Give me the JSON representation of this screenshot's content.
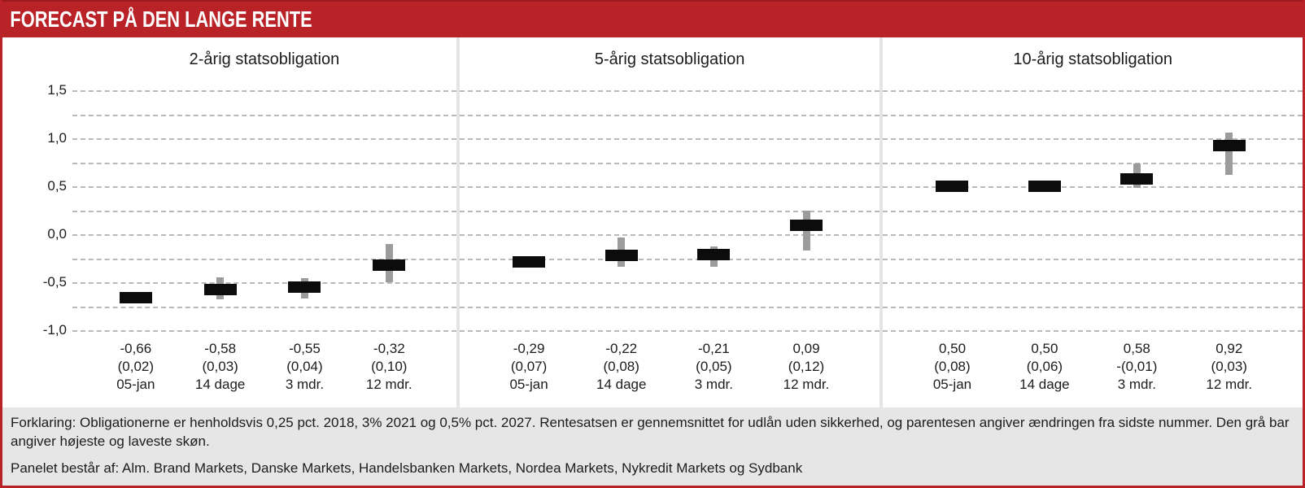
{
  "header": {
    "title": "FORECAST PÅ DEN LANGE RENTE"
  },
  "colors": {
    "accent": "#b92227",
    "accent_dark": "#9a1a1f",
    "bar": "#0c0c0c",
    "whisker": "#9c9c9c",
    "footer_bg": "#e6e6e6",
    "gridline": "#b9b9b9"
  },
  "chart_data": {
    "type": "bar",
    "title": "FORECAST PÅ DEN LANGE RENTE",
    "ylim": [
      -1.0,
      1.5
    ],
    "grid_step": 0.25,
    "grid": "dashed",
    "legend_position": "none",
    "yticks": [
      {
        "label": "1,5",
        "value": 1.5
      },
      {
        "label": "1,0",
        "value": 1.0
      },
      {
        "label": "0,5",
        "value": 0.5
      },
      {
        "label": "0,0",
        "value": 0.0
      },
      {
        "label": "-0,5",
        "value": -0.5
      },
      {
        "label": "-1,0",
        "value": -1.0
      }
    ],
    "x_positions_pct": [
      16.5,
      38.5,
      60.5,
      82.5
    ],
    "panels": [
      {
        "title": "2-årig statsobligation",
        "categories": [
          "05-jan",
          "14 dage",
          "3 mdr.",
          "12 mdr."
        ],
        "points": [
          {
            "value": -0.66,
            "value_label": "-0,66",
            "change_label": "(0,02)",
            "low": -0.66,
            "high": -0.66
          },
          {
            "value": -0.58,
            "value_label": "-0,58",
            "change_label": "(0,03)",
            "low": -0.68,
            "high": -0.45
          },
          {
            "value": -0.55,
            "value_label": "-0,55",
            "change_label": "(0,04)",
            "low": -0.67,
            "high": -0.46
          },
          {
            "value": -0.32,
            "value_label": "-0,32",
            "change_label": "(0,10)",
            "low": -0.5,
            "high": -0.1
          }
        ]
      },
      {
        "title": "5-årig statsobligation",
        "categories": [
          "05-jan",
          "14 dage",
          "3 mdr.",
          "12 mdr."
        ],
        "points": [
          {
            "value": -0.29,
            "value_label": "-0,29",
            "change_label": "(0,07)",
            "low": -0.29,
            "high": -0.29
          },
          {
            "value": -0.22,
            "value_label": "-0,22",
            "change_label": "(0,08)",
            "low": -0.34,
            "high": -0.03
          },
          {
            "value": -0.21,
            "value_label": "-0,21",
            "change_label": "(0,05)",
            "low": -0.34,
            "high": -0.13
          },
          {
            "value": 0.09,
            "value_label": "0,09",
            "change_label": "(0,12)",
            "low": -0.17,
            "high": 0.25
          }
        ]
      },
      {
        "title": "10-årig statsobligation",
        "categories": [
          "05-jan",
          "14 dage",
          "3 mdr.",
          "12 mdr."
        ],
        "points": [
          {
            "value": 0.5,
            "value_label": "0,50",
            "change_label": "(0,08)",
            "low": 0.5,
            "high": 0.5
          },
          {
            "value": 0.5,
            "value_label": "0,50",
            "change_label": "(0,06)",
            "low": 0.5,
            "high": 0.5
          },
          {
            "value": 0.58,
            "value_label": "0,58",
            "change_label": "-(0,01)",
            "low": 0.48,
            "high": 0.74
          },
          {
            "value": 0.92,
            "value_label": "0,92",
            "change_label": "(0,03)",
            "low": 0.62,
            "high": 1.06
          }
        ]
      }
    ]
  },
  "footer": {
    "explanation": "Forklaring: Obligationerne er henholdsvis 0,25 pct. 2018, 3% 2021 og 0,5% pct. 2027. Rentesatsen er gennemsnittet for udlån uden sikkerhed, og parentesen angiver ændringen fra sidste nummer. Den grå bar angiver højeste og laveste skøn.",
    "panel_note": "Panelet består af: Alm. Brand Markets, Danske Markets, Handelsbanken Markets, Nordea Markets, Nykredit Markets og Sydbank"
  }
}
